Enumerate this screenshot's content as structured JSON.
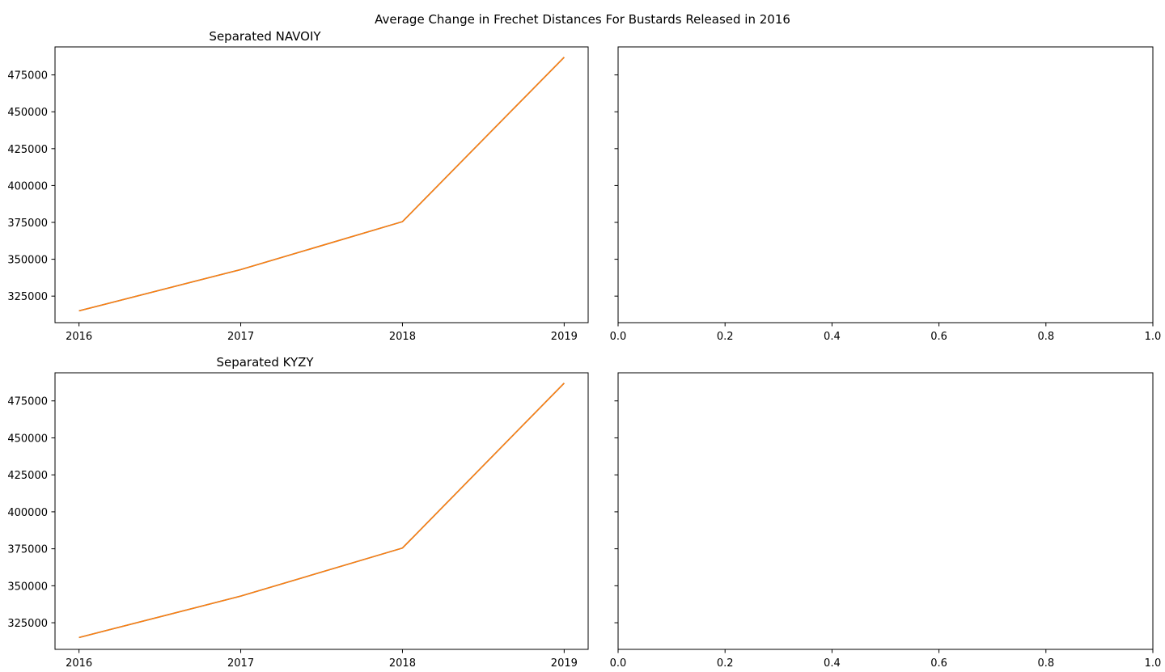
{
  "figure": {
    "title": "Average Change in Frechet Distances For Bustards Released in 2016"
  },
  "colors": {
    "series_blue": "#1f77b4",
    "series_orange": "#ff7f0e",
    "axes": "#000000",
    "background": "#ffffff"
  },
  "chart_data": [
    {
      "type": "line",
      "title": "Separated NAVOIY",
      "xlabel": "",
      "ylabel": "",
      "x": [
        "2016",
        "2017",
        "2018",
        "2019"
      ],
      "series": [
        {
          "values": [
            315000,
            343000,
            375500,
            487000
          ]
        },
        {
          "values": [
            315000,
            343000,
            375500,
            487000
          ]
        }
      ],
      "yticks": [
        "325000",
        "350000",
        "375000",
        "400000",
        "425000",
        "450000",
        "475000"
      ],
      "ylim": [
        307000,
        494000
      ],
      "grid": false
    },
    {
      "type": "line",
      "title": "",
      "xlabel": "",
      "ylabel": "",
      "x": [],
      "series": [],
      "xticks": [
        "0.0",
        "0.2",
        "0.4",
        "0.6",
        "0.8",
        "1.0"
      ],
      "xlim": [
        0,
        1
      ],
      "grid": false
    },
    {
      "type": "line",
      "title": "Separated KYZY",
      "xlabel": "",
      "ylabel": "",
      "x": [
        "2016",
        "2017",
        "2018",
        "2019"
      ],
      "series": [
        {
          "values": [
            315000,
            343000,
            375500,
            487000
          ]
        },
        {
          "values": [
            315000,
            343000,
            375500,
            487000
          ]
        }
      ],
      "yticks": [
        "325000",
        "350000",
        "375000",
        "400000",
        "425000",
        "450000",
        "475000"
      ],
      "ylim": [
        307000,
        494000
      ],
      "grid": false
    },
    {
      "type": "line",
      "title": "",
      "xlabel": "",
      "ylabel": "",
      "x": [],
      "series": [],
      "xticks": [
        "0.0",
        "0.2",
        "0.4",
        "0.6",
        "0.8",
        "1.0"
      ],
      "xlim": [
        0,
        1
      ],
      "grid": false
    }
  ]
}
